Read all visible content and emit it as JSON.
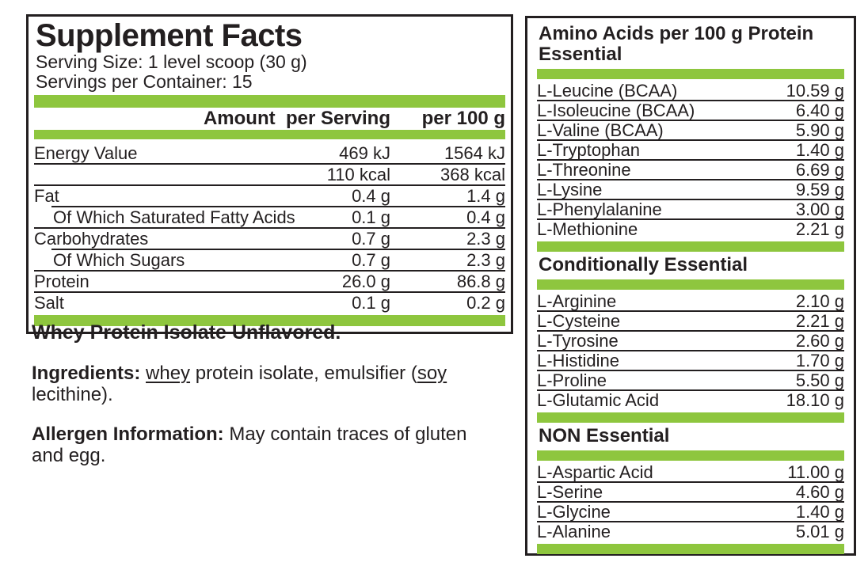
{
  "colors": {
    "accent_green": "#8EC63E",
    "ink": "#231F20"
  },
  "left_panel": {
    "title": "Supplement Facts",
    "serving_size": "Serving Size: 1 level scoop (30 g)",
    "servings_per_container": "Servings per Container: 15",
    "columns": {
      "amount_header": "Amount  per Serving",
      "per100_header": "per 100 g"
    },
    "rows": [
      {
        "label": "Energy Value",
        "serving": "469 kJ",
        "per100": "1564 kJ",
        "indent": false
      },
      {
        "label": "",
        "serving": "110 kcal",
        "per100": "368 kcal",
        "indent": false
      },
      {
        "label": "Fat",
        "serving": "0.4 g",
        "per100": "1.4 g",
        "indent": false
      },
      {
        "label": "Of Which Saturated Fatty Acids",
        "serving": "0.1 g",
        "per100": "0.4 g",
        "indent": true
      },
      {
        "label": "Carbohydrates",
        "serving": "0.7 g",
        "per100": "2.3 g",
        "indent": false
      },
      {
        "label": "Of Which Sugars",
        "serving": "0.7 g",
        "per100": "2.3 g",
        "indent": true
      },
      {
        "label": "Protein",
        "serving": "26.0 g",
        "per100": "86.8 g",
        "indent": false
      },
      {
        "label": "Salt",
        "serving": "0.1 g",
        "per100": "0.2 g",
        "indent": false
      }
    ],
    "product_name": "Whey Protein Isolate Unflavored.",
    "ingredients": {
      "label": "Ingredients:",
      "segments": [
        {
          "text": " ",
          "underline": false
        },
        {
          "text": "whey",
          "underline": true
        },
        {
          "text": " protein isolate, emulsifier (",
          "underline": false
        },
        {
          "text": "soy",
          "underline": true
        },
        {
          "text": " lecithine).",
          "underline": false
        }
      ]
    },
    "allergen": {
      "label": "Allergen Information:",
      "text": " May contain traces of gluten and egg."
    }
  },
  "right_panel": {
    "title_line1": "Amino Acids per 100 g Protein",
    "title_line2": "Essential",
    "sections": [
      {
        "header": "",
        "rows": [
          {
            "name": "L-Leucine (BCAA)",
            "value": "10.59 g"
          },
          {
            "name": "L-Isoleucine (BCAA)",
            "value": "6.40 g"
          },
          {
            "name": "L-Valine (BCAA)",
            "value": "5.90 g"
          },
          {
            "name": "L-Tryptophan",
            "value": "1.40 g"
          },
          {
            "name": "L-Threonine",
            "value": "6.69 g"
          },
          {
            "name": "L-Lysine",
            "value": "9.59 g"
          },
          {
            "name": "L-Phenylalanine",
            "value": "3.00 g"
          },
          {
            "name": "L-Methionine",
            "value": "2.21 g"
          }
        ]
      },
      {
        "header": "Conditionally Essential",
        "rows": [
          {
            "name": "L-Arginine",
            "value": "2.10 g"
          },
          {
            "name": "L-Cysteine",
            "value": "2.21 g"
          },
          {
            "name": "L-Tyrosine",
            "value": "2.60 g"
          },
          {
            "name": "L-Histidine",
            "value": "1.70 g"
          },
          {
            "name": "L-Proline",
            "value": "5.50 g"
          },
          {
            "name": "L-Glutamic Acid",
            "value": "18.10 g"
          }
        ]
      },
      {
        "header": "NON Essential",
        "rows": [
          {
            "name": "L-Aspartic Acid",
            "value": "11.00 g"
          },
          {
            "name": "L-Serine",
            "value": "4.60 g"
          },
          {
            "name": "L-Glycine",
            "value": "1.40 g"
          },
          {
            "name": "L-Alanine",
            "value": "5.01 g"
          }
        ]
      }
    ]
  }
}
